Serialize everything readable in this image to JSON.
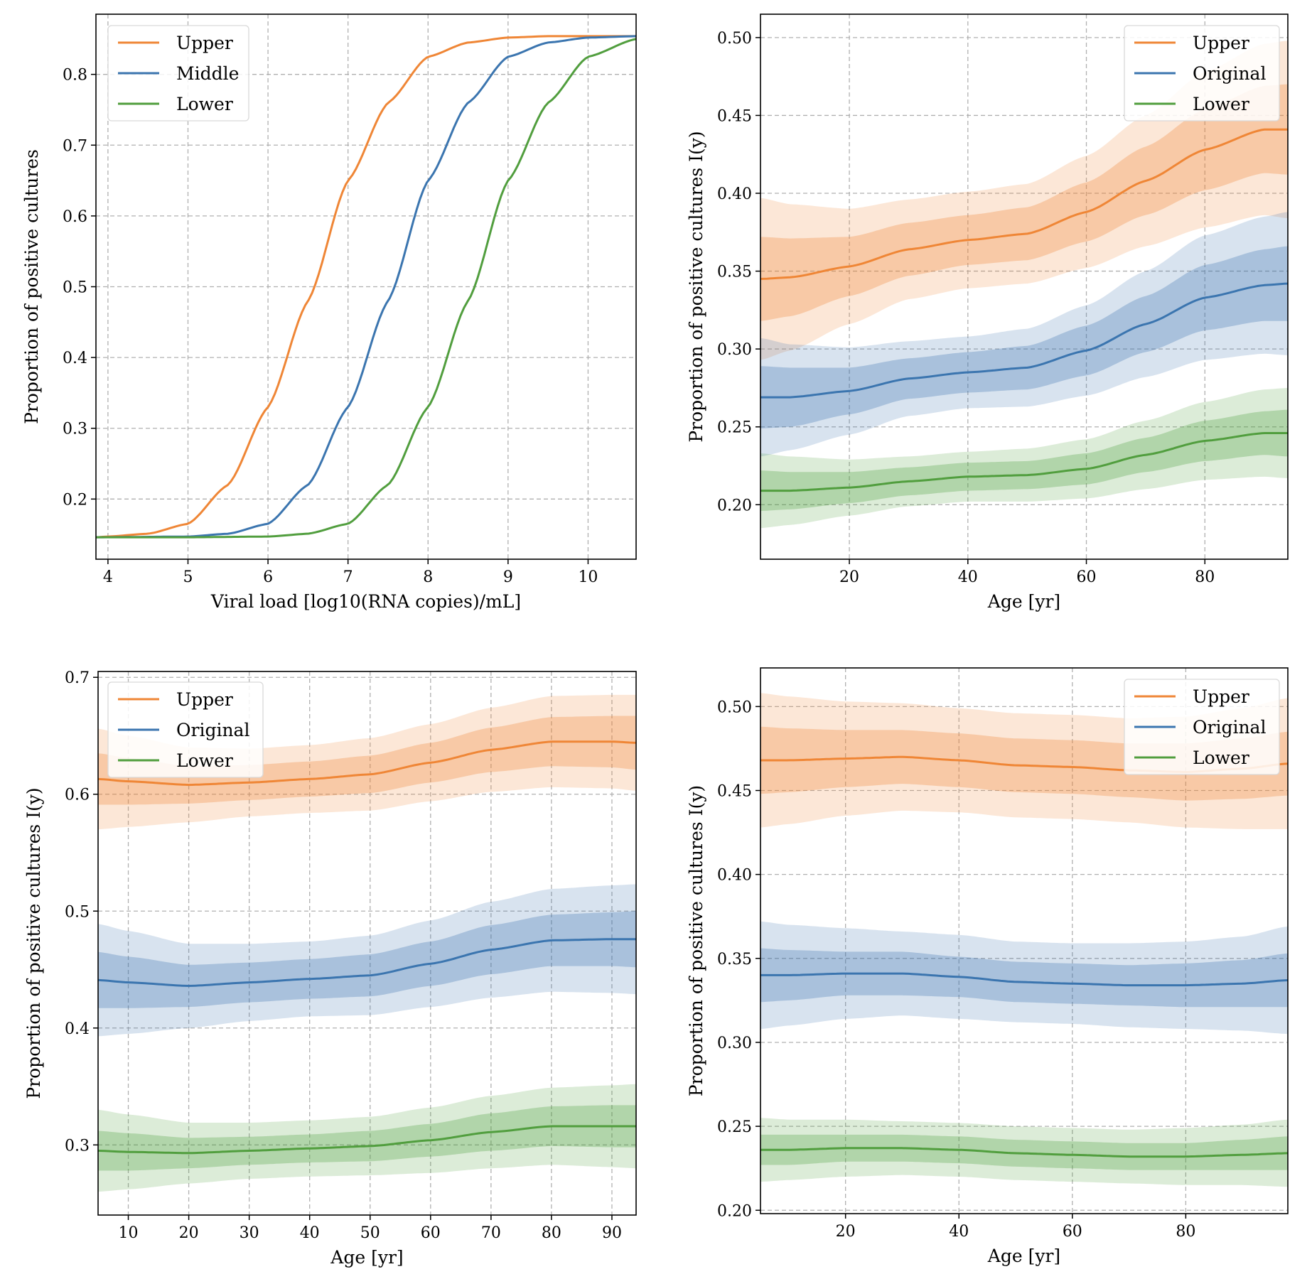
{
  "figure": {
    "title": ""
  },
  "colors": {
    "upper": "#ef8636",
    "middle": "#3b75af",
    "lower": "#519e3e",
    "grid": "#b0b0b0",
    "axis": "#000000"
  },
  "chart_data": [
    {
      "id": "panel-a",
      "type": "line",
      "title": "",
      "xlabel": "Viral load [log10(RNA copies)/mL]",
      "ylabel": "Proportion of positive cultures",
      "xlim": [
        3.85,
        10.6
      ],
      "ylim": [
        0.115,
        0.885
      ],
      "xticks": [
        4,
        5,
        6,
        7,
        8,
        9,
        10
      ],
      "xtick_labels": [
        "4",
        "5",
        "6",
        "7",
        "8",
        "9",
        "10"
      ],
      "yticks": [
        0.2,
        0.3,
        0.4,
        0.5,
        0.6,
        0.7,
        0.8
      ],
      "ytick_labels": [
        "0.2",
        "0.3",
        "0.4",
        "0.5",
        "0.6",
        "0.7",
        "0.8"
      ],
      "grid": true,
      "legend_position": "top-left",
      "series": [
        {
          "name": "Upper",
          "color_key": "upper",
          "x": [
            3.85,
            4.0,
            4.5,
            5.0,
            5.5,
            6.0,
            6.5,
            7.0,
            7.5,
            8.0,
            8.5,
            9.0,
            9.5,
            10.0,
            10.6
          ],
          "y": [
            0.146,
            0.147,
            0.151,
            0.165,
            0.22,
            0.33,
            0.48,
            0.65,
            0.76,
            0.825,
            0.845,
            0.852,
            0.854,
            0.854,
            0.854
          ]
        },
        {
          "name": "Middle",
          "color_key": "middle",
          "x": [
            3.85,
            5.0,
            5.5,
            6.0,
            6.5,
            7.0,
            7.5,
            8.0,
            8.5,
            9.0,
            9.5,
            10.0,
            10.6
          ],
          "y": [
            0.146,
            0.147,
            0.151,
            0.165,
            0.22,
            0.33,
            0.48,
            0.65,
            0.76,
            0.825,
            0.845,
            0.852,
            0.854
          ]
        },
        {
          "name": "Lower",
          "color_key": "lower",
          "x": [
            3.85,
            5.0,
            6.0,
            6.5,
            7.0,
            7.5,
            8.0,
            8.5,
            9.0,
            9.5,
            10.0,
            10.6
          ],
          "y": [
            0.146,
            0.146,
            0.147,
            0.151,
            0.165,
            0.22,
            0.33,
            0.48,
            0.65,
            0.76,
            0.825,
            0.85
          ]
        }
      ]
    },
    {
      "id": "panel-b",
      "type": "line",
      "title": "",
      "xlabel": "Age [yr]",
      "ylabel": "Proportion of positive cultures I(y)",
      "xlim": [
        5,
        94
      ],
      "ylim": [
        0.165,
        0.515
      ],
      "xticks": [
        20,
        40,
        60,
        80
      ],
      "xtick_labels": [
        "20",
        "40",
        "60",
        "80"
      ],
      "yticks": [
        0.2,
        0.25,
        0.3,
        0.35,
        0.4,
        0.45,
        0.5
      ],
      "ytick_labels": [
        "0.20",
        "0.25",
        "0.30",
        "0.35",
        "0.40",
        "0.45",
        "0.50"
      ],
      "grid": true,
      "legend_position": "top-right",
      "series": [
        {
          "name": "Upper",
          "color_key": "upper",
          "x": [
            5,
            10,
            20,
            30,
            40,
            50,
            60,
            70,
            80,
            90,
            94
          ],
          "y": [
            0.345,
            0.346,
            0.353,
            0.364,
            0.37,
            0.374,
            0.388,
            0.408,
            0.428,
            0.441,
            0.441
          ],
          "band_inner": [
            0.027,
            0.025,
            0.019,
            0.017,
            0.016,
            0.017,
            0.019,
            0.022,
            0.026,
            0.028,
            0.029
          ],
          "band_outer": [
            0.052,
            0.047,
            0.037,
            0.032,
            0.031,
            0.032,
            0.036,
            0.042,
            0.05,
            0.055,
            0.057
          ]
        },
        {
          "name": "Original",
          "color_key": "middle",
          "x": [
            5,
            10,
            20,
            30,
            40,
            50,
            60,
            70,
            80,
            90,
            94
          ],
          "y": [
            0.269,
            0.269,
            0.273,
            0.281,
            0.285,
            0.288,
            0.299,
            0.316,
            0.333,
            0.341,
            0.342
          ],
          "band_inner": [
            0.02,
            0.019,
            0.015,
            0.013,
            0.013,
            0.014,
            0.016,
            0.018,
            0.021,
            0.023,
            0.024
          ],
          "band_outer": [
            0.038,
            0.034,
            0.028,
            0.024,
            0.023,
            0.025,
            0.029,
            0.034,
            0.04,
            0.044,
            0.046
          ]
        },
        {
          "name": "Lower",
          "color_key": "lower",
          "x": [
            5,
            10,
            20,
            30,
            40,
            50,
            60,
            70,
            80,
            90,
            94
          ],
          "y": [
            0.209,
            0.209,
            0.211,
            0.215,
            0.218,
            0.219,
            0.223,
            0.232,
            0.241,
            0.246,
            0.246
          ],
          "band_inner": [
            0.013,
            0.012,
            0.01,
            0.009,
            0.009,
            0.009,
            0.01,
            0.011,
            0.013,
            0.014,
            0.015
          ],
          "band_outer": [
            0.024,
            0.022,
            0.018,
            0.016,
            0.016,
            0.017,
            0.019,
            0.022,
            0.025,
            0.028,
            0.029
          ]
        }
      ]
    },
    {
      "id": "panel-c",
      "type": "line",
      "title": "",
      "xlabel": "Age [yr]",
      "ylabel": "Proportion of positive cultures I(y)",
      "xlim": [
        5,
        94
      ],
      "ylim": [
        0.24,
        0.705
      ],
      "xticks": [
        10,
        20,
        30,
        40,
        50,
        60,
        70,
        80,
        90
      ],
      "xtick_labels": [
        "10",
        "20",
        "30",
        "40",
        "50",
        "60",
        "70",
        "80",
        "90"
      ],
      "yticks": [
        0.3,
        0.4,
        0.5,
        0.6,
        0.7
      ],
      "ytick_labels": [
        "0.3",
        "0.4",
        "0.5",
        "0.6",
        "0.7"
      ],
      "grid": true,
      "legend_position": "top-left",
      "series": [
        {
          "name": "Upper",
          "color_key": "upper",
          "x": [
            5,
            10,
            20,
            30,
            40,
            50,
            60,
            70,
            80,
            90,
            94
          ],
          "y": [
            0.613,
            0.611,
            0.608,
            0.61,
            0.613,
            0.617,
            0.627,
            0.638,
            0.645,
            0.645,
            0.644
          ],
          "band_inner": [
            0.022,
            0.02,
            0.016,
            0.015,
            0.015,
            0.016,
            0.017,
            0.019,
            0.021,
            0.022,
            0.023
          ],
          "band_outer": [
            0.043,
            0.039,
            0.032,
            0.029,
            0.029,
            0.031,
            0.033,
            0.036,
            0.039,
            0.04,
            0.041
          ]
        },
        {
          "name": "Original",
          "color_key": "middle",
          "x": [
            5,
            10,
            20,
            30,
            40,
            50,
            60,
            70,
            80,
            90,
            94
          ],
          "y": [
            0.441,
            0.439,
            0.436,
            0.439,
            0.442,
            0.445,
            0.455,
            0.467,
            0.475,
            0.476,
            0.476
          ],
          "band_inner": [
            0.024,
            0.022,
            0.018,
            0.017,
            0.017,
            0.018,
            0.019,
            0.021,
            0.022,
            0.023,
            0.024
          ],
          "band_outer": [
            0.048,
            0.044,
            0.036,
            0.033,
            0.032,
            0.034,
            0.037,
            0.041,
            0.044,
            0.046,
            0.047
          ]
        },
        {
          "name": "Lower",
          "color_key": "lower",
          "x": [
            5,
            10,
            20,
            30,
            40,
            50,
            60,
            70,
            80,
            90,
            94
          ],
          "y": [
            0.295,
            0.294,
            0.293,
            0.295,
            0.297,
            0.299,
            0.304,
            0.311,
            0.316,
            0.316,
            0.316
          ],
          "band_inner": [
            0.017,
            0.016,
            0.013,
            0.012,
            0.012,
            0.013,
            0.014,
            0.016,
            0.017,
            0.018,
            0.018
          ],
          "band_outer": [
            0.035,
            0.032,
            0.026,
            0.024,
            0.024,
            0.025,
            0.028,
            0.031,
            0.033,
            0.035,
            0.036
          ]
        }
      ]
    },
    {
      "id": "panel-d",
      "type": "line",
      "title": "",
      "xlabel": "Age [yr]",
      "ylabel": "Proportion of positive cultures I(y)",
      "xlim": [
        5,
        98
      ],
      "ylim": [
        0.198,
        0.523
      ],
      "xticks": [
        20,
        40,
        60,
        80
      ],
      "xtick_labels": [
        "20",
        "40",
        "60",
        "80"
      ],
      "yticks": [
        0.2,
        0.25,
        0.3,
        0.35,
        0.4,
        0.45,
        0.5
      ],
      "ytick_labels": [
        "0.20",
        "0.25",
        "0.30",
        "0.35",
        "0.40",
        "0.45",
        "0.50"
      ],
      "grid": true,
      "legend_position": "top-right",
      "series": [
        {
          "name": "Upper",
          "color_key": "upper",
          "x": [
            5,
            10,
            20,
            30,
            40,
            50,
            60,
            70,
            80,
            90,
            98
          ],
          "y": [
            0.468,
            0.468,
            0.469,
            0.47,
            0.468,
            0.465,
            0.464,
            0.462,
            0.461,
            0.463,
            0.466
          ],
          "band_inner": [
            0.02,
            0.019,
            0.017,
            0.016,
            0.016,
            0.016,
            0.016,
            0.016,
            0.017,
            0.018,
            0.019
          ],
          "band_outer": [
            0.04,
            0.038,
            0.034,
            0.032,
            0.031,
            0.031,
            0.031,
            0.031,
            0.033,
            0.036,
            0.039
          ]
        },
        {
          "name": "Original",
          "color_key": "middle",
          "x": [
            5,
            10,
            20,
            30,
            40,
            50,
            60,
            70,
            80,
            90,
            98
          ],
          "y": [
            0.34,
            0.34,
            0.341,
            0.341,
            0.339,
            0.336,
            0.335,
            0.334,
            0.334,
            0.335,
            0.337
          ],
          "band_inner": [
            0.016,
            0.015,
            0.013,
            0.013,
            0.012,
            0.012,
            0.012,
            0.012,
            0.013,
            0.014,
            0.016
          ],
          "band_outer": [
            0.032,
            0.03,
            0.027,
            0.025,
            0.025,
            0.024,
            0.024,
            0.025,
            0.026,
            0.028,
            0.032
          ]
        },
        {
          "name": "Lower",
          "color_key": "lower",
          "x": [
            5,
            10,
            20,
            30,
            40,
            50,
            60,
            70,
            80,
            90,
            98
          ],
          "y": [
            0.236,
            0.236,
            0.237,
            0.237,
            0.236,
            0.234,
            0.233,
            0.232,
            0.232,
            0.233,
            0.234
          ],
          "band_inner": [
            0.009,
            0.009,
            0.008,
            0.008,
            0.008,
            0.008,
            0.008,
            0.008,
            0.008,
            0.009,
            0.01
          ],
          "band_outer": [
            0.019,
            0.018,
            0.017,
            0.016,
            0.016,
            0.016,
            0.016,
            0.016,
            0.017,
            0.018,
            0.02
          ]
        }
      ]
    }
  ]
}
